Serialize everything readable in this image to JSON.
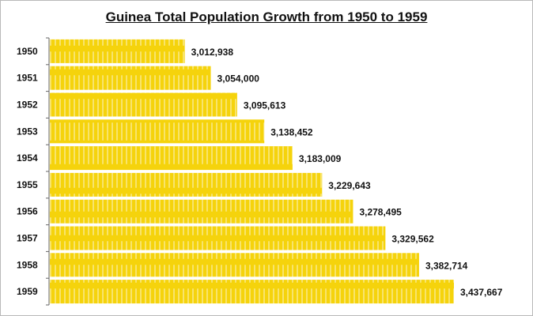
{
  "chart_data": {
    "type": "bar",
    "orientation": "horizontal",
    "title": "Guinea Total Population Growth from 1950 to 1959",
    "categories": [
      "1950",
      "1951",
      "1952",
      "1953",
      "1954",
      "1955",
      "1956",
      "1957",
      "1958",
      "1959"
    ],
    "values": [
      3012938,
      3054000,
      3095613,
      3138452,
      3183009,
      3229643,
      3278495,
      3329562,
      3382714,
      3437667
    ],
    "data_labels": [
      "3,012,938",
      "3,054,000",
      "3,095,613",
      "3,138,452",
      "3,183,009",
      "3,229,643",
      "3,278,495",
      "3,329,562",
      "3,382,714",
      "3,437,667"
    ],
    "xlim": [
      2800000,
      3440000
    ],
    "xlabel": "",
    "ylabel": "",
    "grid": false,
    "colors": {
      "bar": "#f5d30c",
      "bar_stripe": "#f8e46c",
      "axis": "#666666"
    }
  }
}
